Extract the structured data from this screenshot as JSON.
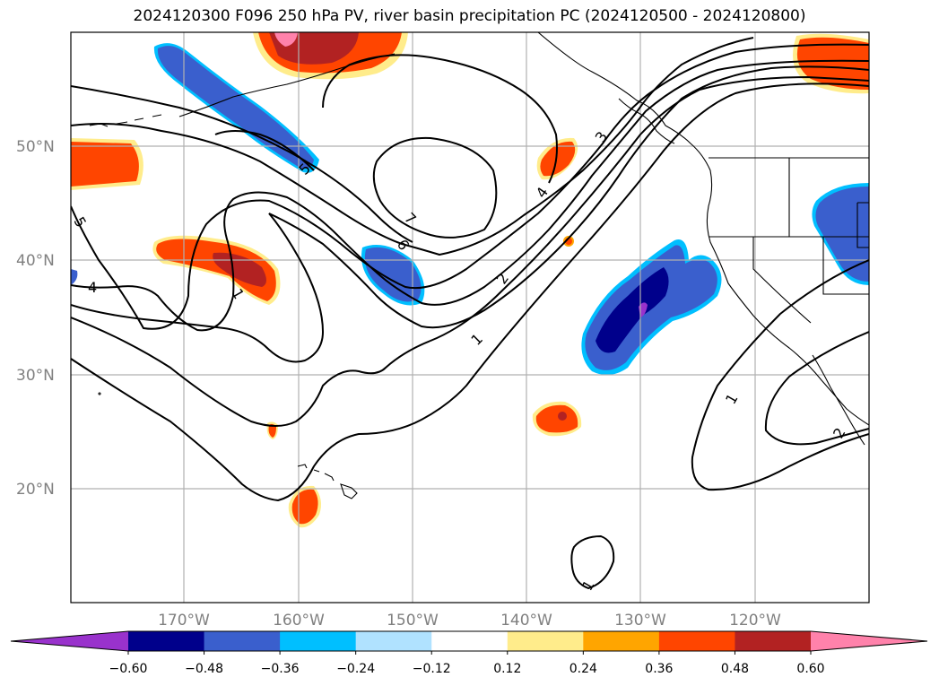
{
  "title": "2024120300 F096 250 hPa PV, river basin precipitation PC (2024120500 - 2024120800)",
  "map": {
    "lat_labels": [
      "50°N",
      "40°N",
      "30°N",
      "20°N"
    ],
    "lon_labels": [
      "170°W",
      "160°W",
      "150°W",
      "140°W",
      "130°W",
      "120°W"
    ],
    "contour_labels": [
      "1",
      "1",
      "1",
      "1",
      "2",
      "2",
      "3",
      "4",
      "4",
      "5",
      "5",
      "6",
      "7"
    ]
  },
  "colorbar": {
    "ticks": [
      "−0.60",
      "−0.48",
      "−0.36",
      "−0.24",
      "−0.12",
      "0.12",
      "0.24",
      "0.36",
      "0.48",
      "0.60"
    ],
    "colors": [
      "#9932cc",
      "#00008b",
      "#3a5fcd",
      "#00bfff",
      "#b0e2ff",
      "#ffffff",
      "#ffec8b",
      "#ffa500",
      "#ff4500",
      "#b22222",
      "#ff82ab"
    ]
  },
  "colors": {
    "grid": "#b0b0b0",
    "contour": "#000000"
  }
}
